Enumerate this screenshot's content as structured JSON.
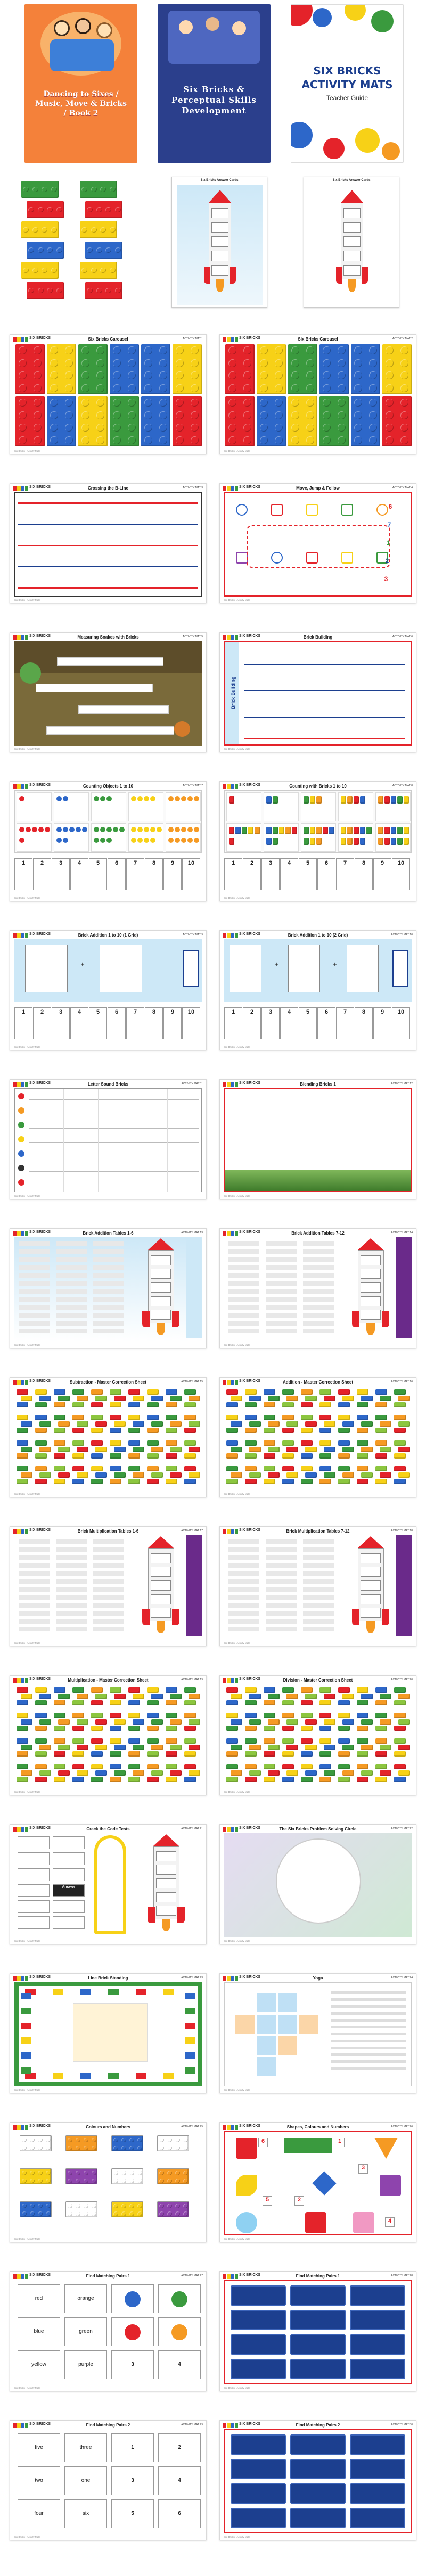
{
  "covers": [
    {
      "title": "Dancing to Sixes / Music, Move & Bricks / Book 2",
      "bg": "#f4813a"
    },
    {
      "title": "Six Bricks & Perceptual Skills Development",
      "bg": "#2b3f8c"
    },
    {
      "title_line1": "SIX BRICKS",
      "title_line2": "ACTIVITY MATS",
      "subtitle": "Teacher Guide",
      "bg": "#ffffff"
    }
  ],
  "logo_text": "SIX BRICKS",
  "footer": "Six Bricks · Activity Mats",
  "answer_card": {
    "title": "Six Bricks Answer Cards"
  },
  "mats": [
    {
      "title": "Six Bricks Carousel",
      "code": "ACTIVITY MAT 1"
    },
    {
      "title": "Six Bricks Carousel",
      "code": "ACTIVITY MAT 2"
    },
    {
      "title": "Crossing the B-Line",
      "code": "ACTIVITY MAT 3"
    },
    {
      "title": "Move, Jump & Follow",
      "code": "ACTIVITY MAT 4"
    },
    {
      "title": "Measuring Snakes with Bricks",
      "code": "ACTIVITY MAT 5"
    },
    {
      "title": "Brick Building",
      "code": "ACTIVITY MAT 6"
    },
    {
      "title": "Counting Objects 1 to 10",
      "code": "ACTIVITY MAT 7"
    },
    {
      "title": "Counting with Bricks 1 to 10",
      "code": "ACTIVITY MAT 8"
    },
    {
      "title": "Brick Addition 1 to 10 (1 Grid)",
      "code": "ACTIVITY MAT 9"
    },
    {
      "title": "Brick Addition 1 to 10 (2 Grid)",
      "code": "ACTIVITY MAT 10"
    },
    {
      "title": "Letter Sound Bricks",
      "code": "ACTIVITY MAT 11"
    },
    {
      "title": "Blending Bricks 1",
      "code": "ACTIVITY MAT 12"
    },
    {
      "title": "Brick Addition Tables 1-6",
      "code": "ACTIVITY MAT 13"
    },
    {
      "title": "Brick Addition Tables 7-12",
      "code": "ACTIVITY MAT 14"
    },
    {
      "title": "Subtraction - Master Correction Sheet",
      "code": "ACTIVITY MAT 15"
    },
    {
      "title": "Addition - Master Correction Sheet",
      "code": "ACTIVITY MAT 16"
    },
    {
      "title": "Brick Multiplication Tables 1-6",
      "code": "ACTIVITY MAT 17"
    },
    {
      "title": "Brick Multiplication Tables 7-12",
      "code": "ACTIVITY MAT 18"
    },
    {
      "title": "Multiplication - Master Correction Sheet",
      "code": "ACTIVITY MAT 19"
    },
    {
      "title": "Division - Master Correction Sheet",
      "code": "ACTIVITY MAT 20"
    },
    {
      "title": "Crack the Code Tests",
      "code": "ACTIVITY MAT 21"
    },
    {
      "title": "The Six Bricks Problem Solving Circle",
      "code": "ACTIVITY MAT 22"
    },
    {
      "title": "Line Brick Standing",
      "code": "ACTIVITY MAT 23"
    },
    {
      "title": "Yoga",
      "code": "ACTIVITY MAT 24"
    },
    {
      "title": "Colours and Numbers",
      "code": "ACTIVITY MAT 25"
    },
    {
      "title": "Shapes, Colours and Numbers",
      "code": "ACTIVITY MAT 26"
    },
    {
      "title": "Find Matching Pairs 1",
      "code": "ACTIVITY MAT 27"
    },
    {
      "title": "Find Matching Pairs 1",
      "code": "ACTIVITY MAT 28"
    },
    {
      "title": "Find Matching Pairs 2",
      "code": "ACTIVITY MAT 29"
    },
    {
      "title": "Find Matching Pairs 2",
      "code": "ACTIVITY MAT 30"
    }
  ],
  "counting_numbers": [
    "1",
    "2",
    "3",
    "4",
    "5",
    "6",
    "7",
    "8",
    "9",
    "10"
  ],
  "brick_building_label": "Brick Building",
  "colour_words": [
    "red",
    "orange",
    "blue",
    "green",
    "yellow",
    "purple",
    "blue",
    "light green"
  ],
  "pair_numbers": [
    "1",
    "2",
    "3",
    "4",
    "5",
    "6"
  ],
  "pair_words": [
    "five",
    "three",
    "two",
    "one",
    "four",
    "six"
  ],
  "shape_numbers": [
    "6",
    "1",
    "3",
    "5",
    "2",
    "4"
  ],
  "crack_code_word": "Answer",
  "colors": {
    "red": "#e4232a",
    "yellow": "#f7d117",
    "blue": "#2d67c9",
    "green": "#3a9a3e",
    "orange": "#f59a23",
    "lightgreen": "#8cc63f",
    "navy": "#1c3f8f",
    "sky": "#cde8f7"
  }
}
